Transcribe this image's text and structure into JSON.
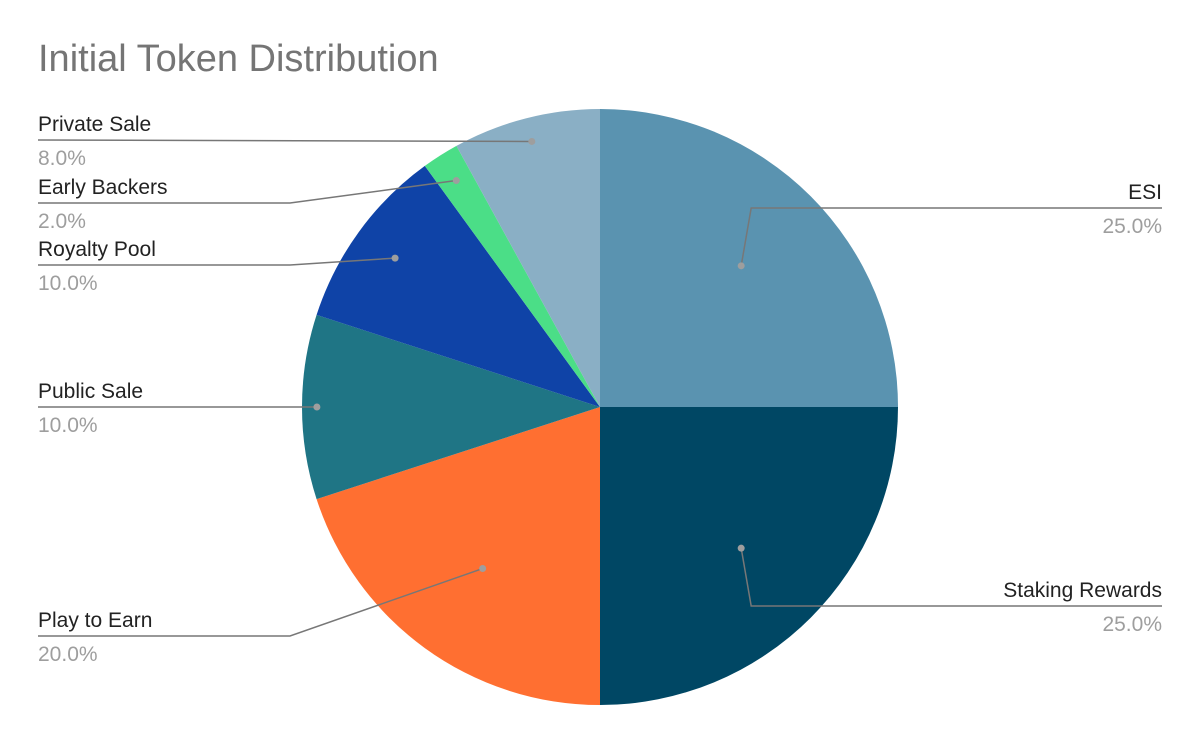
{
  "chart_data": {
    "type": "pie",
    "title": "Initial Token Distribution",
    "slices": [
      {
        "label": "ESI",
        "value": 25.0,
        "display": "25.0%",
        "color": "#5a93b0"
      },
      {
        "label": "Staking Rewards",
        "value": 25.0,
        "display": "25.0%",
        "color": "#004764"
      },
      {
        "label": "Play to Earn",
        "value": 20.0,
        "display": "20.0%",
        "color": "#ff6f31"
      },
      {
        "label": "Public Sale",
        "value": 10.0,
        "display": "10.0%",
        "color": "#1f7585"
      },
      {
        "label": "Royalty Pool",
        "value": 10.0,
        "display": "10.0%",
        "color": "#0f43a7"
      },
      {
        "label": "Early Backers",
        "value": 2.0,
        "display": "2.0%",
        "color": "#4bde87"
      },
      {
        "label": "Private Sale",
        "value": 8.0,
        "display": "8.0%",
        "color": "#8aafc5"
      }
    ],
    "start_angle": "12 o'clock",
    "direction": "clockwise",
    "legend": "none"
  }
}
